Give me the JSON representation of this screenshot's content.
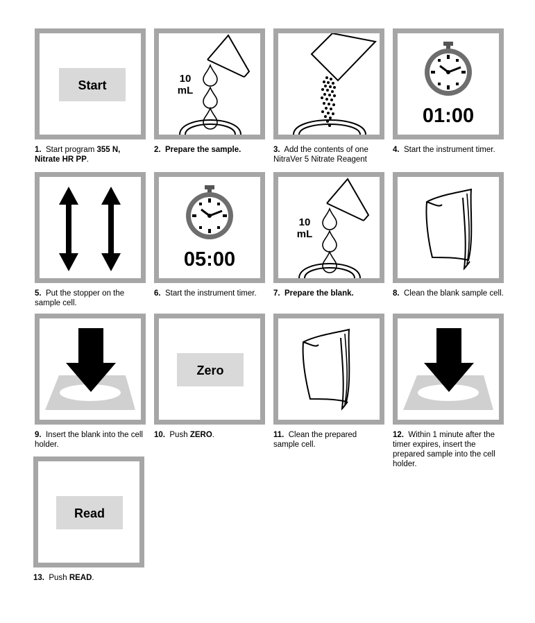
{
  "steps": [
    {
      "num": "1.",
      "pre": "Start program ",
      "bold": "355 N, Nitrate HR PP",
      "post": ".",
      "button_label": "Start",
      "icon": "start-button"
    },
    {
      "num": "2.",
      "pre": "",
      "bold": "Prepare the sample.",
      "post": "",
      "volume_line1": "10",
      "volume_line2": "mL",
      "icon": "droplets-into-cell"
    },
    {
      "num": "3.",
      "pre": "Add the contents of one NitraVer 5 Nitrate Reagent",
      "bold": "",
      "post": "",
      "icon": "powder-pillow-into-cell"
    },
    {
      "num": "4.",
      "pre": "Start the instrument timer.",
      "bold": "",
      "post": "",
      "timer_value": "01:00",
      "icon": "timer"
    },
    {
      "num": "5.",
      "pre": "Put the stopper on the sample cell.",
      "bold": "",
      "post": "",
      "icon": "shake-arrows"
    },
    {
      "num": "6.",
      "pre": "Start the instrument timer.",
      "bold": "",
      "post": "",
      "timer_value": "05:00",
      "icon": "timer"
    },
    {
      "num": "7.",
      "pre": "",
      "bold": "Prepare the blank.",
      "post": "",
      "volume_line1": "10",
      "volume_line2": "mL",
      "icon": "droplets-into-cell"
    },
    {
      "num": "8.",
      "pre": "Clean the blank sample cell.",
      "bold": "",
      "post": "",
      "icon": "wipe-cloth"
    },
    {
      "num": "9.",
      "pre": "Insert the blank into the cell holder.",
      "bold": "",
      "post": "",
      "icon": "insert-arrow"
    },
    {
      "num": "10.",
      "pre": "Push ",
      "bold": "ZERO",
      "post": ".",
      "button_label": "Zero",
      "icon": "zero-button"
    },
    {
      "num": "11.",
      "pre": "Clean the prepared sample cell.",
      "bold": "",
      "post": "",
      "icon": "wipe-cloth"
    },
    {
      "num": "12.",
      "pre": "Within 1 minute after the timer expires, insert the prepared sample into the cell holder.",
      "bold": "",
      "post": "",
      "icon": "insert-arrow"
    },
    {
      "num": "13.",
      "pre": "Push ",
      "bold": "READ",
      "post": ".",
      "button_label": "Read",
      "icon": "read-button"
    }
  ],
  "colors": {
    "frame": "#a6a6a6",
    "button_fill": "#d9d9d9",
    "holder_fill": "#d0d0d0",
    "ink": "#000000"
  }
}
